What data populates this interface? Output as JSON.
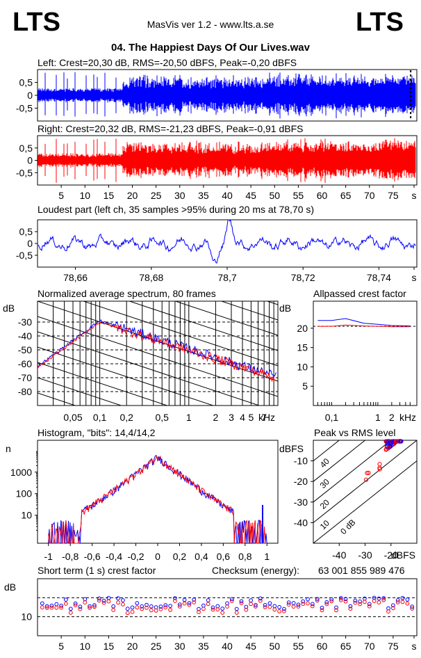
{
  "header": {
    "logo_left": "LTS",
    "logo_right": "LTS",
    "app_title": "MasVis ver 1.2 - www.lts.a.se",
    "file_title": "04. The Happiest Days Of Our Lives.wav"
  },
  "colors": {
    "left": "#0000ff",
    "right": "#ff0000",
    "grid": "#000000"
  },
  "chart_data": [
    {
      "type": "area",
      "name": "waveform-left",
      "title": "Left: Crest=20,30 dB, RMS=-20,50 dBFS, Peak=-0,20 dBFS",
      "y_ticks": [
        "0,5",
        "0",
        "-0,5"
      ],
      "ylim": [
        -1,
        1
      ],
      "xlim": [
        0,
        80
      ],
      "envelope_description_values": {
        "early_peak": 0.75,
        "late_level": 0.55
      },
      "marker_x": 78.7
    },
    {
      "type": "area",
      "name": "waveform-right",
      "title": "Right: Crest=20,32 dB, RMS=-21,23 dBFS, Peak=-0,91 dBFS",
      "y_ticks": [
        "0,5",
        "0",
        "-0,5"
      ],
      "ylim": [
        -1,
        1
      ],
      "xlim": [
        0,
        80
      ],
      "x_ticks": [
        "5",
        "10",
        "15",
        "20",
        "25",
        "30",
        "35",
        "40",
        "45",
        "50",
        "55",
        "60",
        "65",
        "70",
        "75",
        "s"
      ]
    },
    {
      "type": "line",
      "name": "loudest-part",
      "title": "Loudest part (left  ch, 35 samples >95% during 20 ms at 78,70 s)",
      "y_ticks": [
        "0,5",
        "0",
        "-0,5"
      ],
      "ylim": [
        -1,
        1
      ],
      "xlim": [
        78.65,
        78.75
      ],
      "x_ticks": [
        "78,66",
        "78,68",
        "78,7",
        "78,72",
        "78,74",
        "s"
      ]
    },
    {
      "type": "line",
      "name": "spectrum",
      "title": "Normalized average spectrum, 80 frames",
      "ylabel": "dB",
      "y_ticks": [
        "-30",
        "-40",
        "-50",
        "-60",
        "-70",
        "-80"
      ],
      "ylim": [
        -90,
        -15
      ],
      "x_ticks": [
        "0,05",
        "0,1",
        "0,2",
        "0,5",
        "1",
        "2",
        "3",
        "4",
        "5",
        "7",
        "kHz"
      ],
      "xlim_khz": [
        0.02,
        10
      ]
    },
    {
      "type": "line",
      "name": "allpassed-crest",
      "title": "Allpassed crest factor",
      "ylabel": "dB",
      "y_ticks": [
        "20",
        "15",
        "10",
        "5"
      ],
      "ylim": [
        0,
        27
      ],
      "x_ticks": [
        "0,1",
        "1",
        "2",
        "kHz"
      ],
      "series": [
        {
          "name": "",
          "x": [
            0.05,
            0.1,
            0.2,
            0.5,
            1,
            2,
            5
          ],
          "values": [
            22,
            22,
            22.5,
            21.3,
            21,
            20.7,
            20.6
          ]
        },
        {
          "name": "",
          "x": [
            0.05,
            0.1,
            0.2,
            0.5,
            1,
            2,
            5
          ],
          "values": [
            20.5,
            20.5,
            20.8,
            20.6,
            20.5,
            20.4,
            20.4
          ]
        }
      ]
    },
    {
      "type": "line",
      "name": "histogram",
      "title": "Histogram, \"bits\": 14,4/14,2",
      "ylabel": "n",
      "y_ticks": [
        "1000",
        "100",
        "10"
      ],
      "x_ticks": [
        "-1",
        "-0,8",
        "-0,6",
        "-0,4",
        "-0,2",
        "0",
        "0,2",
        "0,4",
        "0,6",
        "0,8",
        "1"
      ],
      "xlim": [
        -1.1,
        1.1
      ],
      "ylim_log": [
        0.5,
        30000
      ]
    },
    {
      "type": "scatter",
      "name": "peak-vs-rms",
      "title": "Peak vs RMS level",
      "ylabel": "dBFS",
      "xlabel": "dBFS",
      "y_ticks": [
        "-10",
        "-20",
        "-30",
        "-40"
      ],
      "x_ticks": [
        "-40",
        "-30",
        "-20"
      ],
      "diagonal_labels": [
        "40",
        "30",
        "20",
        "10",
        "0 dB"
      ],
      "xlim": [
        -50,
        -10
      ],
      "ylim": [
        -50,
        0
      ]
    },
    {
      "type": "scatter",
      "name": "short-term-crest",
      "title": "Short term (1 s) crest factor",
      "ylabel": "dB",
      "y_ticks": [
        "10"
      ],
      "x_ticks": [
        "5",
        "10",
        "15",
        "20",
        "25",
        "30",
        "35",
        "40",
        "45",
        "50",
        "55",
        "60",
        "65",
        "70",
        "75",
        "s"
      ],
      "xlim": [
        0,
        80
      ],
      "ylim": [
        0,
        30
      ]
    }
  ],
  "checksum": {
    "label": "Checksum (energy):",
    "value": "63 001 855 989 476"
  }
}
